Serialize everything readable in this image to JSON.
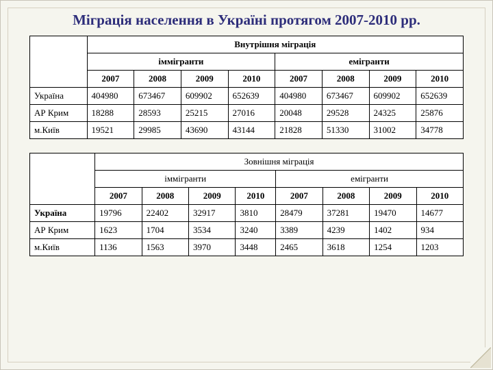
{
  "title": "Міграція населення в Україні протягом 2007-2010 рр.",
  "colors": {
    "page_bg": "#f5f5ee",
    "title_color": "#2d2d7a",
    "border": "#000000",
    "table_bg": "#ffffff"
  },
  "years": [
    "2007",
    "2008",
    "2009",
    "2010"
  ],
  "table1": {
    "header_main": "Внутрішня міграція",
    "group_left": "іммігранти",
    "group_right": "емігранти",
    "rows": [
      {
        "label": "Україна",
        "imm": [
          "404980",
          "673467",
          "609902",
          "652639"
        ],
        "emi": [
          "404980",
          "673467",
          "609902",
          "652639"
        ]
      },
      {
        "label": "АР Крим",
        "imm": [
          "18288",
          "28593",
          "25215",
          "27016"
        ],
        "emi": [
          "20048",
          "29528",
          "24325",
          "25876"
        ]
      },
      {
        "label": "м.Київ",
        "imm": [
          "19521",
          "29985",
          "43690",
          "43144"
        ],
        "emi": [
          "21828",
          "51330",
          "31002",
          "34778"
        ]
      }
    ]
  },
  "table2": {
    "header_main": "Зовнішня міграція",
    "group_left": "іммігранти",
    "group_right": "емігранти",
    "rows": [
      {
        "label": "Україна",
        "bold": true,
        "imm": [
          "19796",
          "22402",
          "32917",
          "3810"
        ],
        "emi": [
          "28479",
          "37281",
          "19470",
          "14677"
        ]
      },
      {
        "label": "АР Крим",
        "bold": false,
        "imm": [
          "1623",
          "1704",
          "3534",
          "3240"
        ],
        "emi": [
          "3389",
          "4239",
          "1402",
          "934"
        ]
      },
      {
        "label": "м.Київ",
        "bold": false,
        "imm": [
          "1136",
          "1563",
          "3970",
          "3448"
        ],
        "emi": [
          "2465",
          "3618",
          "1254",
          "1203"
        ]
      }
    ]
  }
}
